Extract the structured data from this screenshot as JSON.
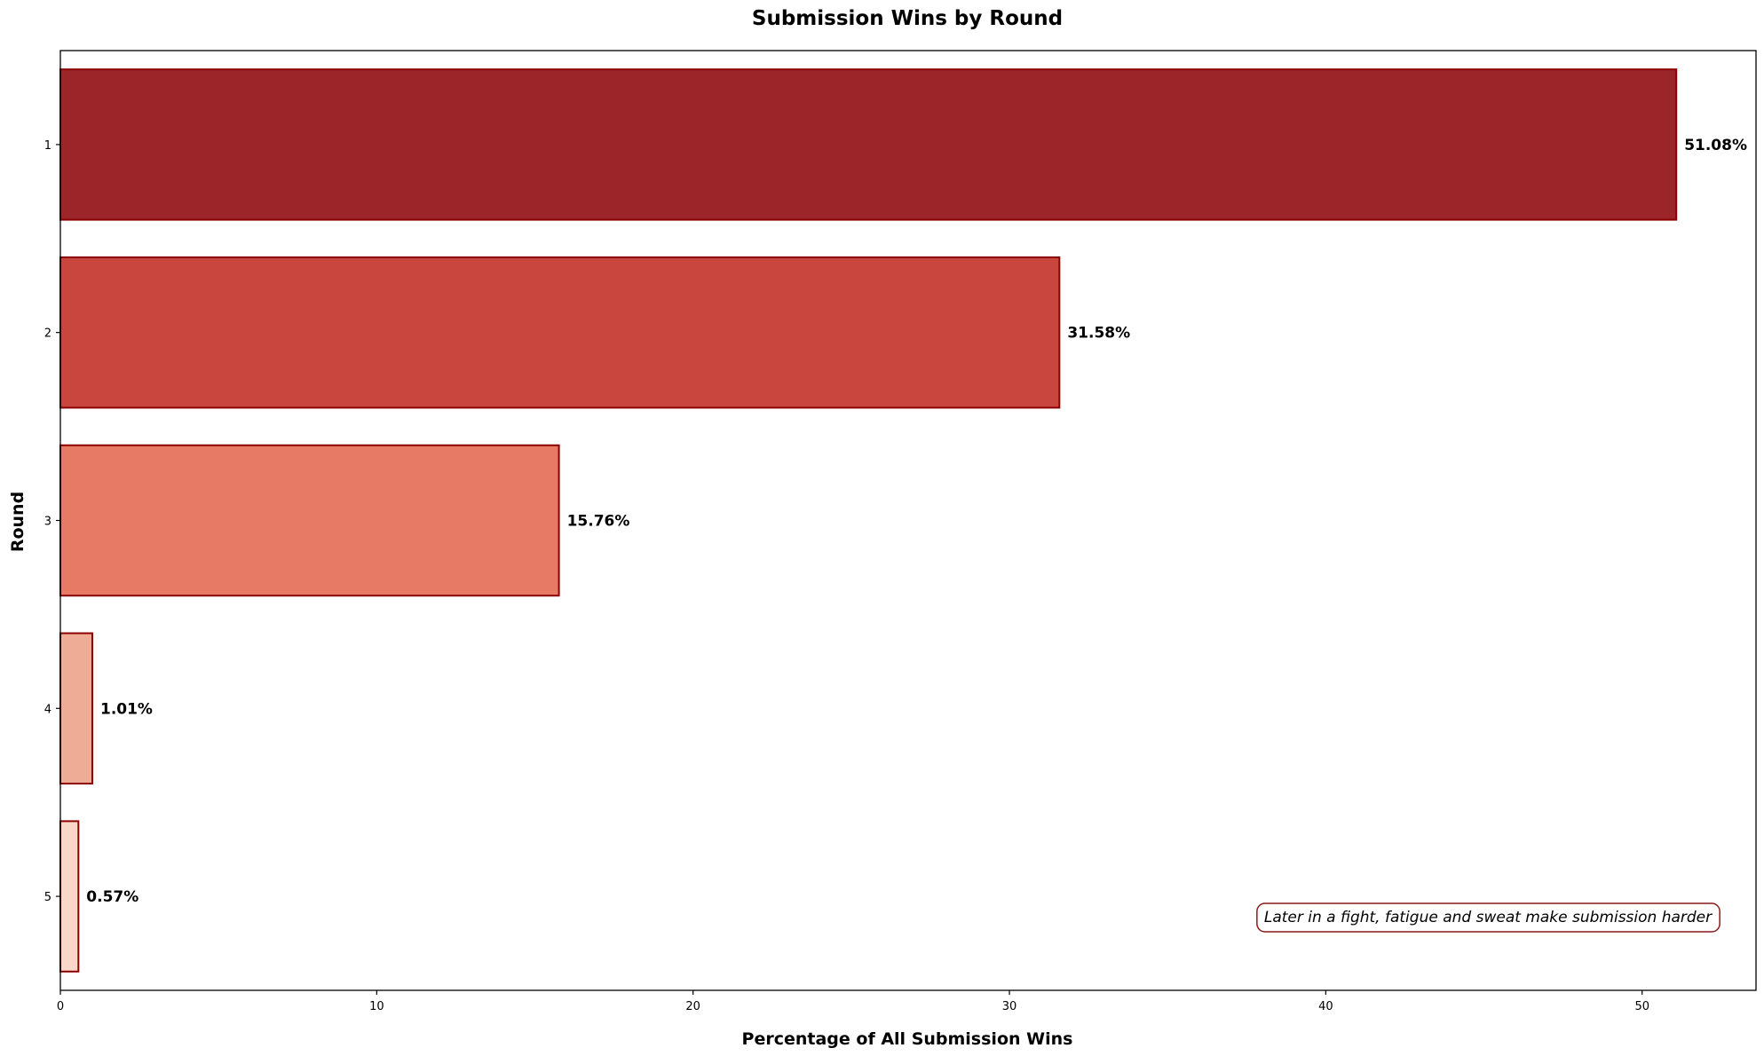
{
  "chart_data": {
    "type": "bar",
    "orientation": "horizontal",
    "title": "Submission Wins by Round",
    "xlabel": "Percentage of All Submission Wins",
    "ylabel": "Round",
    "categories": [
      "1",
      "2",
      "3",
      "4",
      "5"
    ],
    "values": [
      51.08,
      31.58,
      15.76,
      1.01,
      0.57
    ],
    "data_labels": [
      "51.08%",
      "31.58%",
      "15.76%",
      "1.01%",
      "0.57%"
    ],
    "xlim": [
      0,
      53.6
    ],
    "xticks": [
      0,
      10,
      20,
      30,
      40,
      50
    ],
    "xtick_labels": [
      "0",
      "10",
      "20",
      "30",
      "40",
      "50"
    ],
    "bar_colors": [
      "#9c252a",
      "#c9463f",
      "#e67a64",
      "#eeab96",
      "#f9d8ca"
    ],
    "edge_color": "#8b0000",
    "grid": false,
    "annotation": {
      "text": "Later in a fight, fatigue and sweat make submission harder",
      "border_color": "#8b1a1a"
    }
  }
}
